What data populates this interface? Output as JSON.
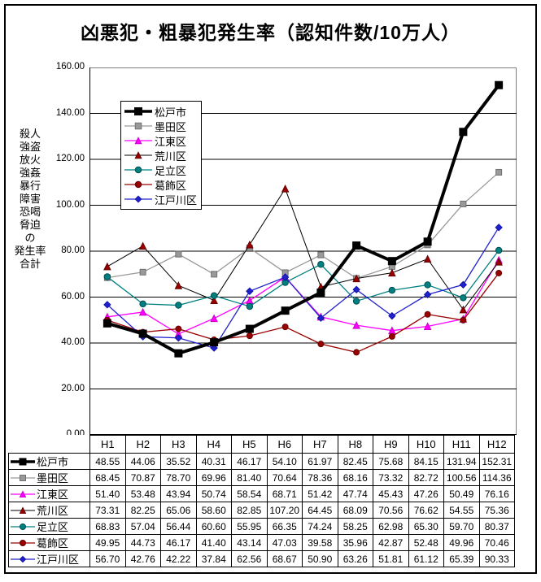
{
  "chart_data": {
    "type": "line",
    "title": "凶悪犯・粗暴犯発生率（認知件数/10万人）",
    "xlabel": "",
    "ylabel": "殺人強盗放火強姦暴行障害恐喝脅迫の発生率合計",
    "ylabel_lines": [
      "殺人",
      "強盗",
      "放火",
      "強姦",
      "暴行",
      "障害",
      "恐喝",
      "脅迫",
      "の",
      "発生率",
      "合計"
    ],
    "ylim": [
      0,
      160
    ],
    "y_major_unit": 20,
    "y_tick_labels": [
      "160.00",
      "140.00",
      "120.00",
      "100.00",
      "80.00",
      "60.00",
      "40.00",
      "20.00",
      "0.00"
    ],
    "grid": true,
    "legend_position": "inside-top-left",
    "plot_border_color": "#808080",
    "gridline_color": "#000000",
    "categories": [
      "H1",
      "H2",
      "H3",
      "H4",
      "H5",
      "H6",
      "H7",
      "H8",
      "H9",
      "H10",
      "H11",
      "H12"
    ],
    "series": [
      {
        "id": "matsudo",
        "name": "松戸市",
        "color": "#000000",
        "marker": "square",
        "marker_color": "#000000",
        "marker_stroke": "#000000",
        "line_width": 4,
        "marker_size": 9,
        "values": [
          48.55,
          44.06,
          35.52,
          40.31,
          46.17,
          54.1,
          61.97,
          82.45,
          75.68,
          84.15,
          131.94,
          152.31
        ]
      },
      {
        "id": "sumida",
        "name": "墨田区",
        "color": "#999999",
        "marker": "square",
        "marker_color": "#999999",
        "marker_stroke": "#707070",
        "line_width": 1.3,
        "marker_size": 7,
        "values": [
          68.45,
          70.87,
          78.7,
          69.96,
          81.4,
          70.64,
          78.36,
          68.16,
          73.32,
          82.72,
          100.56,
          114.36
        ]
      },
      {
        "id": "koto",
        "name": "江東区",
        "color": "#FF00FF",
        "marker": "triangle",
        "marker_color": "#FF00FF",
        "marker_stroke": "#CC00CC",
        "line_width": 1.3,
        "marker_size": 8,
        "values": [
          51.4,
          53.48,
          43.94,
          50.74,
          58.54,
          68.71,
          51.42,
          47.74,
          45.43,
          47.26,
          50.49,
          76.16
        ]
      },
      {
        "id": "arakawa",
        "name": "荒川区",
        "color": "#000000",
        "marker": "triangle",
        "marker_color": "#990000",
        "marker_stroke": "#660000",
        "line_width": 1,
        "marker_size": 8,
        "values": [
          73.31,
          82.25,
          65.06,
          58.6,
          82.85,
          107.2,
          64.45,
          68.09,
          70.56,
          76.62,
          54.55,
          75.36
        ]
      },
      {
        "id": "adachi",
        "name": "足立区",
        "color": "#008080",
        "marker": "circle",
        "marker_color": "#008080",
        "marker_stroke": "#004D4D",
        "line_width": 1.3,
        "marker_size": 7.5,
        "values": [
          68.83,
          57.04,
          56.44,
          60.6,
          55.95,
          66.35,
          74.24,
          58.25,
          62.98,
          65.3,
          59.7,
          80.37
        ]
      },
      {
        "id": "katsushika",
        "name": "葛飾区",
        "color": "#990000",
        "marker": "circle",
        "marker_color": "#990000",
        "marker_stroke": "#660000",
        "line_width": 1.3,
        "marker_size": 7,
        "values": [
          49.95,
          44.73,
          46.17,
          41.4,
          43.14,
          47.03,
          39.58,
          35.96,
          42.87,
          52.48,
          49.96,
          70.46
        ]
      },
      {
        "id": "edogawa",
        "name": "江戸川区",
        "color": "#2222CC",
        "marker": "diamond",
        "marker_color": "#2222CC",
        "marker_stroke": "#1111AA",
        "line_width": 1.3,
        "marker_size": 8,
        "values": [
          56.7,
          42.76,
          42.22,
          37.84,
          62.56,
          68.67,
          50.9,
          63.26,
          51.81,
          61.12,
          65.39,
          90.33
        ]
      }
    ]
  },
  "table": {
    "corner_label": ""
  }
}
